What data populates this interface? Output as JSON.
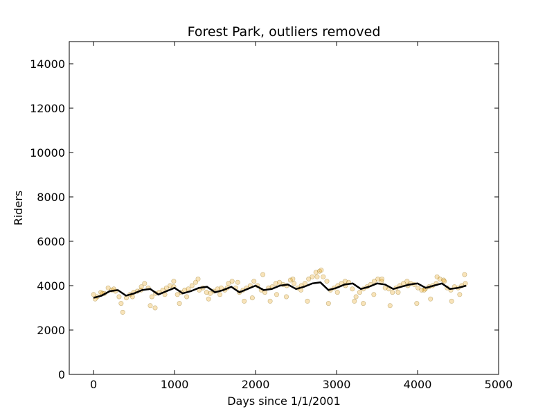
{
  "chart_data": {
    "type": "scatter",
    "title": "Forest Park, outliers removed",
    "xlabel": "Days since 1/1/2001",
    "ylabel": "Riders",
    "xlim": [
      -300,
      5000
    ],
    "ylim": [
      0,
      15000
    ],
    "x_ticks": [
      0,
      1000,
      2000,
      3000,
      4000,
      5000
    ],
    "x_tick_labels": [
      "0",
      "1000",
      "2000",
      "3000",
      "4000",
      "5000"
    ],
    "y_ticks": [
      0,
      2000,
      4000,
      6000,
      8000,
      10000,
      12000,
      14000
    ],
    "y_tick_labels": [
      "0",
      "2000",
      "4000",
      "6000",
      "8000",
      "10000",
      "12000",
      "14000"
    ],
    "grid": false,
    "series": [
      {
        "kind": "scatter",
        "color": "#e8a317",
        "edge_color": "#8a6a10",
        "alpha": 0.3,
        "x": [
          0,
          45,
          90,
          135,
          180,
          225,
          270,
          315,
          360,
          405,
          450,
          495,
          540,
          585,
          630,
          675,
          720,
          765,
          810,
          855,
          900,
          945,
          990,
          1035,
          1080,
          1125,
          1170,
          1215,
          1260,
          1305,
          1350,
          1395,
          1440,
          1485,
          1530,
          1575,
          1620,
          1665,
          1710,
          1755,
          1800,
          1845,
          1890,
          1935,
          1980,
          2025,
          2070,
          2115,
          2160,
          2205,
          2250,
          2295,
          2340,
          2385,
          2430,
          2475,
          2520,
          2565,
          2610,
          2655,
          2700,
          2745,
          2790,
          2835,
          2880,
          2925,
          2970,
          3015,
          3060,
          3105,
          3150,
          3195,
          3240,
          3285,
          3330,
          3375,
          3420,
          3465,
          3510,
          3555,
          3600,
          3645,
          3690,
          3735,
          3780,
          3825,
          3870,
          3915,
          3960,
          4005,
          4050,
          4095,
          4140,
          4185,
          4230,
          4275,
          4320,
          4365,
          4410,
          4455,
          4500,
          4545,
          4590,
          20,
          110,
          250,
          340,
          480,
          590,
          700,
          760,
          880,
          990,
          1060,
          1150,
          1290,
          1420,
          1560,
          1650,
          1780,
          1860,
          1960,
          2090,
          2180,
          2260,
          2380,
          2460,
          2560,
          2640,
          2760,
          2810,
          2900,
          3010,
          3110,
          3220,
          3330,
          3460,
          3560,
          3660,
          3760,
          3880,
          3990,
          4080,
          4160,
          4240,
          4330,
          4420,
          4520,
          4580
        ],
        "y": [
          3600,
          3500,
          3700,
          3650,
          3900,
          3800,
          3750,
          3500,
          2800,
          3450,
          3600,
          3700,
          3750,
          3800,
          4100,
          3900,
          3500,
          3650,
          3700,
          3800,
          3900,
          4000,
          3950,
          3600,
          3700,
          3800,
          3850,
          4000,
          4150,
          3800,
          3900,
          3700,
          3650,
          3750,
          3850,
          3900,
          3800,
          4100,
          4200,
          3900,
          3700,
          3800,
          3900,
          4000,
          4200,
          4000,
          3800,
          3700,
          3900,
          3950,
          4100,
          4150,
          4050,
          4000,
          4250,
          4100,
          3900,
          4000,
          4100,
          4300,
          4400,
          4600,
          4650,
          4400,
          4200,
          3800,
          3900,
          4000,
          4100,
          4200,
          4150,
          3850,
          3500,
          3700,
          3850,
          3950,
          4050,
          4200,
          4300,
          4200,
          3900,
          3850,
          3700,
          3900,
          4000,
          4100,
          4200,
          4100,
          4050,
          3900,
          3800,
          3850,
          3950,
          4000,
          4100,
          4300,
          4250,
          3900,
          3800,
          3950,
          3900,
          4000,
          4100,
          3400,
          3650,
          3850,
          3200,
          3500,
          3950,
          3100,
          3000,
          3600,
          4200,
          3200,
          3500,
          4300,
          3400,
          3600,
          3900,
          4150,
          3300,
          3450,
          4500,
          3300,
          3600,
          3500,
          4300,
          3800,
          3300,
          4400,
          4700,
          3200,
          3700,
          4000,
          3300,
          3200,
          3600,
          4300,
          3100,
          3700,
          4000,
          3200,
          3800,
          3400,
          4400,
          4200,
          3300,
          3600,
          4500
        ]
      },
      {
        "kind": "line",
        "color": "#000000",
        "x": [
          0,
          100,
          200,
          300,
          400,
          500,
          600,
          700,
          800,
          900,
          1000,
          1100,
          1200,
          1300,
          1400,
          1500,
          1600,
          1700,
          1800,
          1900,
          2000,
          2100,
          2200,
          2300,
          2400,
          2500,
          2600,
          2700,
          2800,
          2900,
          3000,
          3100,
          3200,
          3300,
          3400,
          3500,
          3600,
          3700,
          3800,
          3900,
          4000,
          4100,
          4200,
          4300,
          4400,
          4500,
          4600
        ],
        "y": [
          3450,
          3550,
          3750,
          3800,
          3550,
          3650,
          3800,
          3850,
          3600,
          3750,
          3900,
          3650,
          3750,
          3900,
          3950,
          3700,
          3800,
          3950,
          3700,
          3850,
          4000,
          3800,
          3850,
          4000,
          4050,
          3850,
          3950,
          4100,
          4150,
          3800,
          3900,
          4050,
          4100,
          3850,
          3950,
          4100,
          4050,
          3850,
          3950,
          4050,
          4100,
          3900,
          4000,
          4100,
          3850,
          3900,
          4000
        ]
      }
    ]
  }
}
